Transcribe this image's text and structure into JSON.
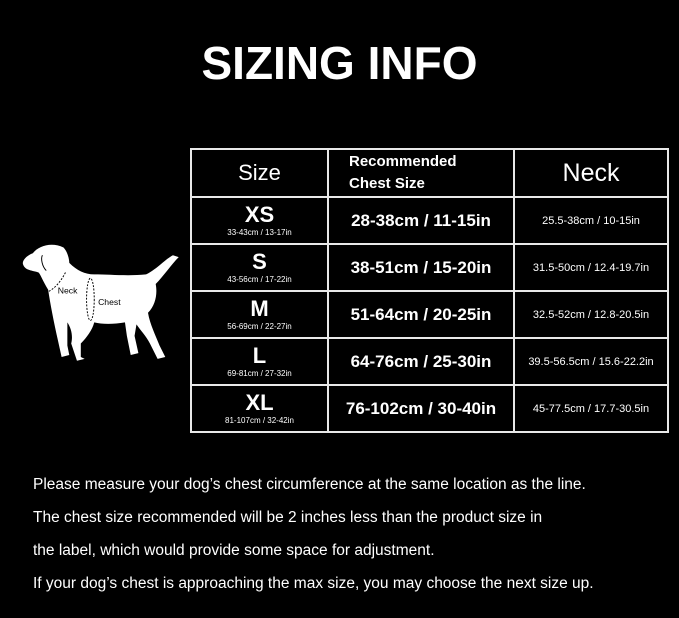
{
  "title": "SIZING INFO",
  "table": {
    "headers": {
      "size": "Size",
      "chest_line1": "Recommended",
      "chest_line2": "Chest Size",
      "neck": "Neck"
    },
    "rows": [
      {
        "size": "XS",
        "size_range": "33-43cm / 13-17in",
        "chest": "28-38cm / 11-15in",
        "neck": "25.5-38cm / 10-15in"
      },
      {
        "size": "S",
        "size_range": "43-56cm / 17-22in",
        "chest": "38-51cm / 15-20in",
        "neck": "31.5-50cm / 12.4-19.7in"
      },
      {
        "size": "M",
        "size_range": "56-69cm / 22-27in",
        "chest": "51-64cm / 20-25in",
        "neck": "32.5-52cm / 12.8-20.5in"
      },
      {
        "size": "L",
        "size_range": "69-81cm / 27-32in",
        "chest": "64-76cm / 25-30in",
        "neck": "39.5-56.5cm / 15.6-22.2in"
      },
      {
        "size": "XL",
        "size_range": "81-107cm / 32-42in",
        "chest": "76-102cm / 30-40in",
        "neck": "45-77.5cm / 17.7-30.5in"
      }
    ]
  },
  "diagram": {
    "neck_label": "Neck",
    "chest_label": "Chest"
  },
  "notes": [
    "Please measure your dog’s chest circumference at the same location as the line.",
    "The chest size recommended will be 2 inches less than the product size in",
    "the label, which would provide some space for adjustment.",
    "If your dog’s chest is approaching the max size, you may choose the next size up."
  ]
}
